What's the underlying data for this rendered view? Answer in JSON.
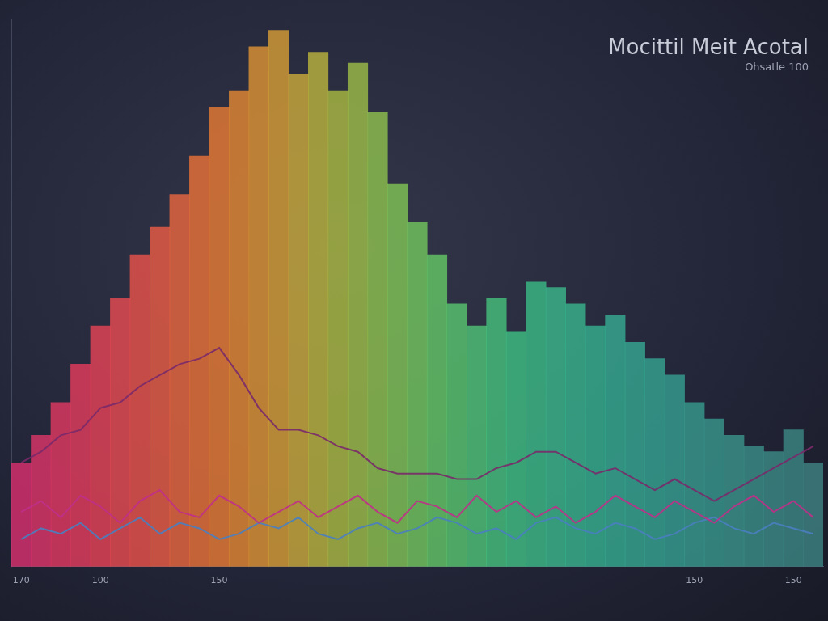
{
  "chart_data": {
    "type": "bar",
    "title": "Mocittil Meit Acotal",
    "subtitle": "Ohsatle 100",
    "categories": [
      "170",
      null,
      null,
      null,
      "100",
      null,
      null,
      null,
      null,
      null,
      "150",
      null,
      null,
      null,
      null,
      null,
      null,
      null,
      null,
      null,
      null,
      null,
      null,
      null,
      null,
      null,
      null,
      null,
      null,
      null,
      null,
      null,
      null,
      null,
      "150",
      null,
      null,
      null,
      null,
      "150",
      null
    ],
    "ylim": [
      0,
      100
    ],
    "yticks": [],
    "grid": false,
    "tick_labels": "x",
    "series": [
      {
        "type": "bar",
        "colors": [
          "#d8306e",
          "#dc3468",
          "#e03862",
          "#e23c5c",
          "#e44256",
          "#e64a50",
          "#e8524a",
          "#e85c44",
          "#e8663e",
          "#e87038",
          "#e67a34",
          "#e28632",
          "#dc9234",
          "#d49c36",
          "#c8a83a",
          "#bab23e",
          "#aab842",
          "#9cbc48",
          "#8ec04e",
          "#80c256",
          "#72c45e",
          "#64c466",
          "#58c46e",
          "#4ec276",
          "#46c07c",
          "#40be82",
          "#3cba86",
          "#3ab68a",
          "#38b28c",
          "#36ae8e",
          "#36aa90",
          "#36a690",
          "#36a290",
          "#369e90",
          "#389a8e",
          "#38968c",
          "#3a928a",
          "#3a8e88",
          "#3c8a86",
          "#3c8684",
          "#3e8282"
        ],
        "values": [
          19,
          24,
          30,
          37,
          44,
          49,
          57,
          62,
          68,
          75,
          84,
          87,
          95,
          98,
          90,
          94,
          87,
          92,
          83,
          70,
          63,
          57,
          48,
          44,
          49,
          43,
          52,
          51,
          48,
          44,
          46,
          41,
          38,
          35,
          30,
          27,
          24,
          22,
          21,
          25,
          19
        ]
      },
      {
        "type": "line",
        "color": "#7a2a6a",
        "values": [
          19,
          21,
          24,
          25,
          29,
          30,
          33,
          35,
          37,
          38,
          40,
          35,
          29,
          25,
          25,
          24,
          22,
          21,
          18,
          17,
          17,
          17,
          16,
          16,
          18,
          19,
          21,
          21,
          19,
          17,
          18,
          16,
          14,
          16,
          14,
          12,
          14,
          16,
          18,
          20,
          22
        ]
      },
      {
        "type": "line",
        "color": "#c0308a",
        "values": [
          10,
          12,
          9,
          13,
          11,
          8,
          12,
          14,
          10,
          9,
          13,
          11,
          8,
          10,
          12,
          9,
          11,
          13,
          10,
          8,
          12,
          11,
          9,
          13,
          10,
          12,
          9,
          11,
          8,
          10,
          13,
          11,
          9,
          12,
          10,
          8,
          11,
          13,
          10,
          12,
          9
        ]
      },
      {
        "type": "line",
        "color": "#4a80c0",
        "values": [
          5,
          7,
          6,
          8,
          5,
          7,
          9,
          6,
          8,
          7,
          5,
          6,
          8,
          7,
          9,
          6,
          5,
          7,
          8,
          6,
          7,
          9,
          8,
          6,
          7,
          5,
          8,
          9,
          7,
          6,
          8,
          7,
          5,
          6,
          8,
          9,
          7,
          6,
          8,
          7,
          6
        ]
      }
    ]
  }
}
